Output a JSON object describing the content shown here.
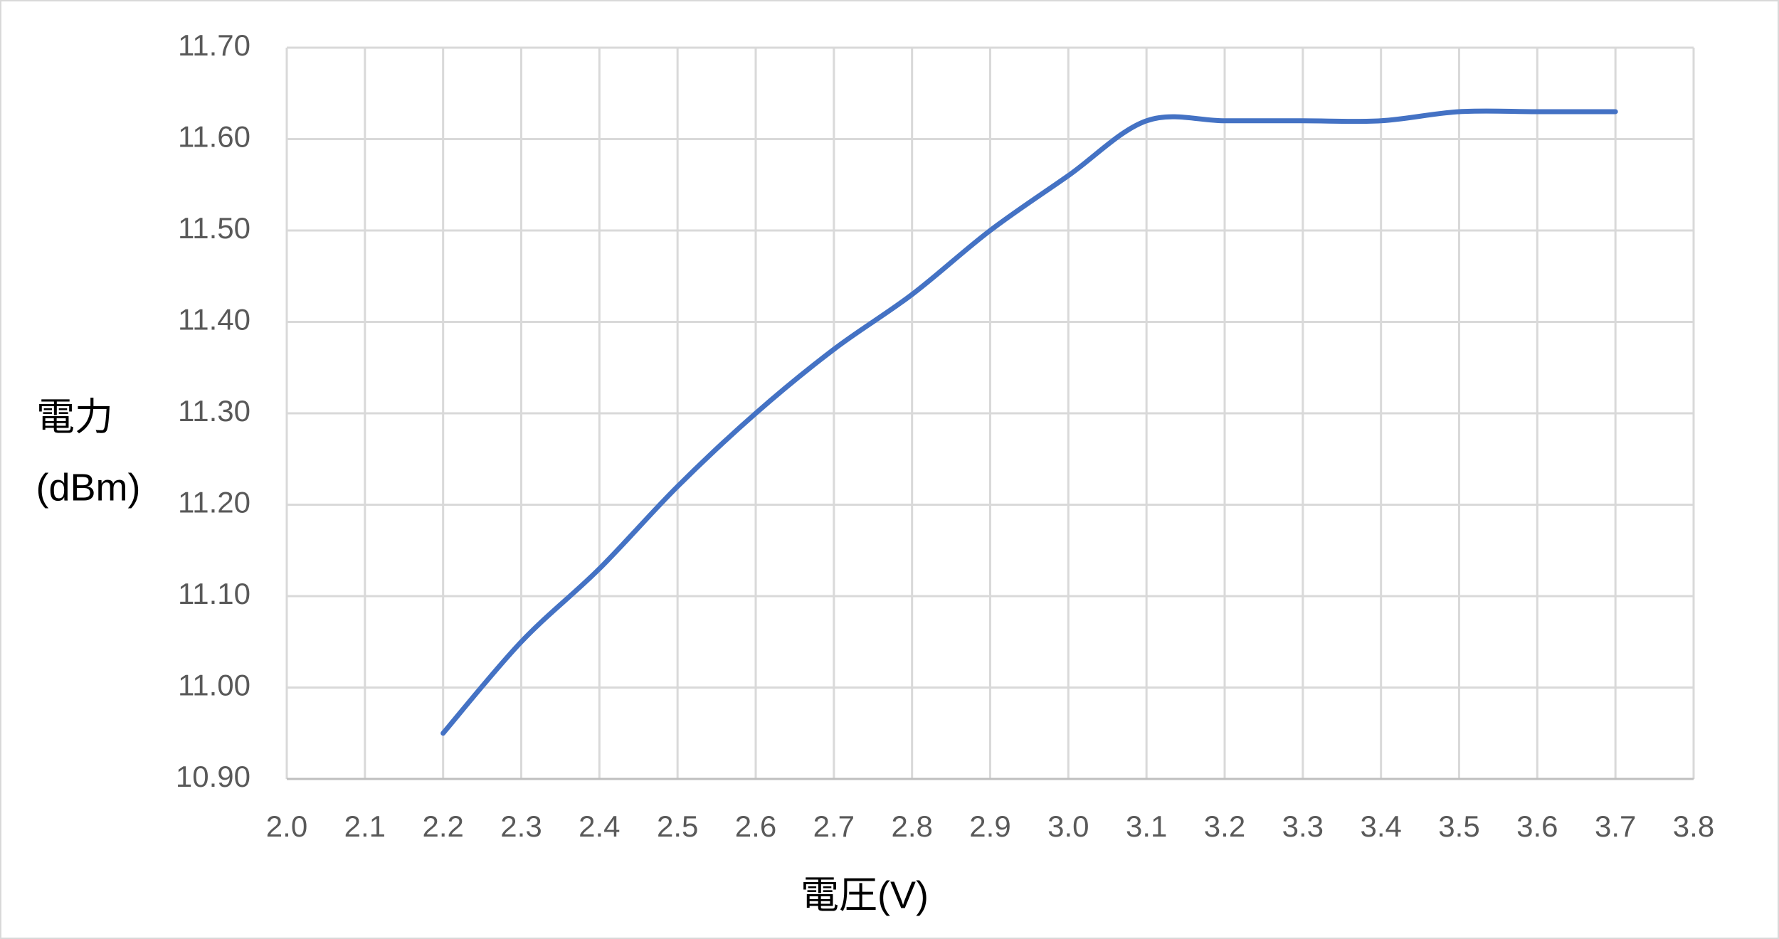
{
  "chart_data": {
    "type": "line",
    "x_label": "電圧(V)",
    "y_label": [
      "電力",
      "(dBm)"
    ],
    "x": [
      2.2,
      2.3,
      2.4,
      2.5,
      2.6,
      2.7,
      2.8,
      2.9,
      3.0,
      3.1,
      3.2,
      3.3,
      3.4,
      3.5,
      3.6,
      3.7
    ],
    "series": [
      {
        "color": "#4472c4",
        "values": [
          10.95,
          11.05,
          11.13,
          11.22,
          11.3,
          11.37,
          11.43,
          11.5,
          11.56,
          11.62,
          11.62,
          11.62,
          11.62,
          11.63,
          11.63,
          11.63
        ]
      }
    ],
    "xlim": [
      2.0,
      3.8
    ],
    "xticks": [
      {
        "value": 2,
        "label": "2.0"
      },
      2.1,
      2.2,
      2.3,
      2.4,
      2.5,
      2.6,
      2.7,
      2.8,
      2.9,
      {
        "value": 3,
        "label": "3.0"
      },
      3.1,
      3.2,
      3.3,
      3.4,
      3.5,
      3.6,
      3.7,
      3.8
    ],
    "ylim": [
      10.9,
      11.7
    ],
    "yticks": [
      {
        "value": 10.9,
        "label": "10.90"
      },
      {
        "value": 11,
        "label": "11.00"
      },
      {
        "value": 11.1,
        "label": "11.10"
      },
      {
        "value": 11.2,
        "label": "11.20"
      },
      {
        "value": 11.3,
        "label": "11.30"
      },
      {
        "value": 11.4,
        "label": "11.40"
      },
      {
        "value": 11.5,
        "label": "11.50"
      },
      {
        "value": 11.6,
        "label": "11.60"
      },
      {
        "value": 11.7,
        "label": "11.70"
      }
    ],
    "grid": true,
    "smooth": true
  }
}
